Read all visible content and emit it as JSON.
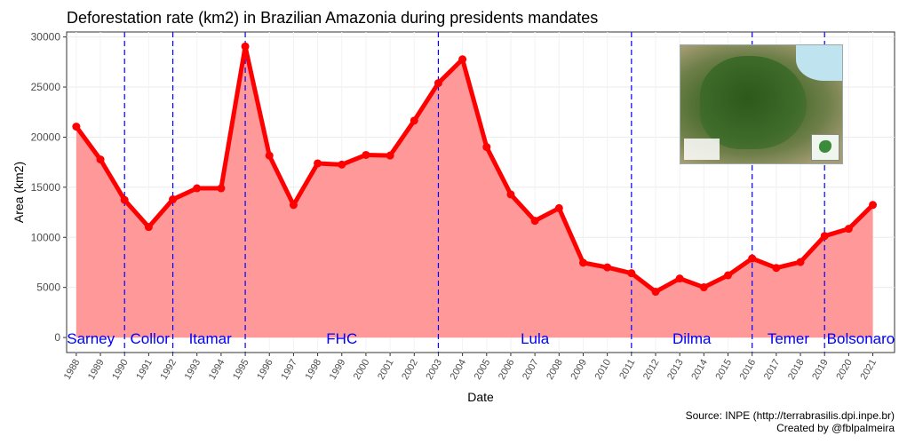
{
  "chart_data": {
    "type": "area",
    "title": "Deforestation rate (km2) in Brazilian Amazonia during presidents mandates",
    "xlabel": "Date",
    "ylabel": "Area (km2)",
    "ylim": [
      -1500,
      30500
    ],
    "yticks": [
      0,
      5000,
      10000,
      15000,
      20000,
      25000,
      30000
    ],
    "grid": true,
    "fill_color": "#ff9999",
    "line_color": "#ff0000",
    "mandate_line_color": "#0000ff",
    "x": [
      1988,
      1989,
      1990,
      1991,
      1992,
      1993,
      1994,
      1995,
      1996,
      1997,
      1998,
      1999,
      2000,
      2001,
      2002,
      2003,
      2004,
      2005,
      2006,
      2007,
      2008,
      2009,
      2010,
      2011,
      2012,
      2013,
      2014,
      2015,
      2016,
      2017,
      2018,
      2019,
      2020,
      2021
    ],
    "xtick_labels": [
      "1988",
      "1989",
      "1990",
      "1991",
      "1992",
      "1993",
      "1994",
      "1995",
      "1996",
      "1997",
      "1998",
      "1999",
      "2000",
      "2001",
      "2002",
      "2003",
      "2004",
      "2005",
      "2006",
      "2007",
      "2008",
      "2009",
      "2010",
      "2011",
      "2012",
      "2013",
      "2014",
      "2015",
      "2016",
      "2017",
      "2018",
      "2019",
      "2020",
      "2021"
    ],
    "values": [
      21050,
      17770,
      13730,
      11030,
      13786,
      14896,
      14896,
      29059,
      18161,
      13227,
      17383,
      17259,
      18226,
      18165,
      21651,
      25396,
      27772,
      19014,
      14286,
      11651,
      12911,
      7464,
      7000,
      6418,
      4571,
      5891,
      5012,
      6207,
      7893,
      6947,
      7536,
      10129,
      10851,
      13235
    ],
    "mandate_boundaries": [
      1990,
      1992,
      1995,
      2003,
      2011,
      2016,
      2019
    ],
    "presidents": [
      {
        "name": "Sarney",
        "year": 1988.6
      },
      {
        "name": "Collor",
        "year": 1991.05
      },
      {
        "name": "Itamar",
        "year": 1993.55
      },
      {
        "name": "FHC",
        "year": 1999
      },
      {
        "name": "Lula",
        "year": 2007
      },
      {
        "name": "Dilma",
        "year": 2013.5
      },
      {
        "name": "Temer",
        "year": 2017.5
      },
      {
        "name": "Bolsonaro",
        "year": 2020.5
      }
    ]
  },
  "caption": {
    "source": "Source: INPE (http://terrabrasilis.dpi.inpe.br)",
    "credit": "Created by @fblpalmeira"
  },
  "inset": {
    "icon": "amazon-map-image"
  }
}
